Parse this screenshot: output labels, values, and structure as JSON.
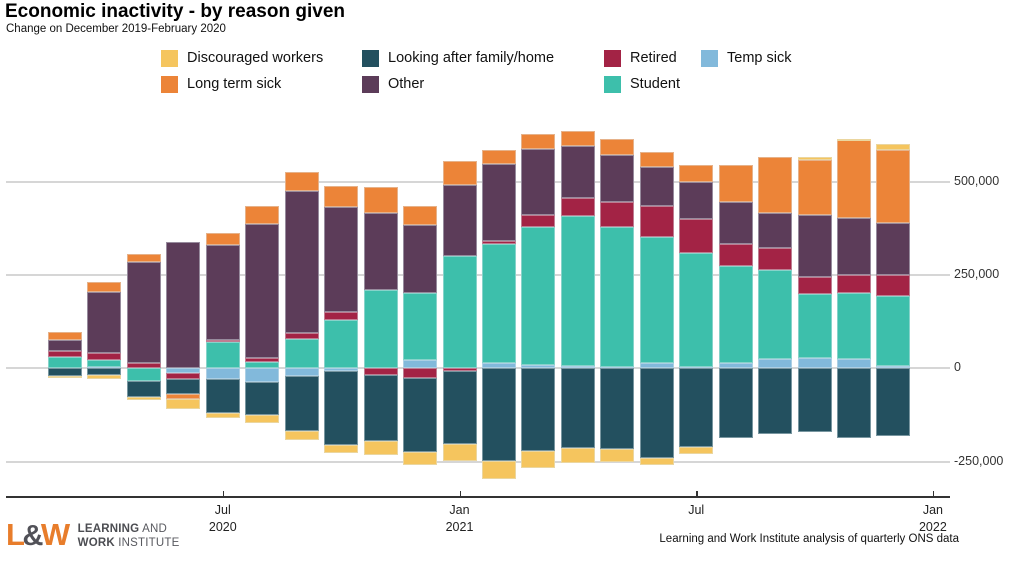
{
  "title": "Economic inactivity - by reason given",
  "subtitle": "Change on December 2019-February 2020",
  "caption": "Learning and Work Institute analysis of quarterly ONS data",
  "logo": {
    "mark_l": "L",
    "mark_amp": "&",
    "mark_w": "W",
    "line1_bold": "LEARNING",
    "line1_rest": " AND",
    "line2_bold": "WORK",
    "line2_rest": " INSTITUTE"
  },
  "y_axis": {
    "labels": [
      "500,000",
      "250,000",
      "0",
      "-250,000"
    ],
    "values": [
      500000,
      250000,
      0,
      -250000
    ]
  },
  "x_axis": {
    "ticks": [
      {
        "line1": "Jul",
        "line2": "2020",
        "slot": 5
      },
      {
        "line1": "Jan",
        "line2": "2021",
        "slot": 11
      },
      {
        "line1": "Jul",
        "line2": "",
        "slot": 17
      },
      {
        "line1": "Jan",
        "line2": "2022",
        "slot": 23
      }
    ]
  },
  "legend": {
    "columns": [
      [
        "discouraged",
        "longterm"
      ],
      [
        "family",
        "other"
      ],
      [
        "retired",
        "student"
      ],
      [
        "tempsick"
      ]
    ]
  },
  "chart_data": {
    "type": "bar",
    "stacked": true,
    "n_bars": 22,
    "x_description": "22 rolling-quarter periods, monthly from Mar 2020 tick-labelled Jul 2020, Jan 2021, Jul, Jan 2022",
    "title": "Economic inactivity - by reason given",
    "subtitle": "Change on December 2019-February 2020",
    "ylabel": "",
    "ylim": [
      -300000,
      650000
    ],
    "grid_values": [
      500000,
      250000,
      0,
      -250000
    ],
    "legend_position": "top",
    "stack_order_from_zero": [
      "tempsick",
      "student",
      "retired",
      "other",
      "family",
      "longterm",
      "discouraged"
    ],
    "series": [
      {
        "id": "discouraged",
        "name": "Discouraged workers",
        "color": "#F5C55E",
        "values": [
          -7000,
          -11000,
          -9000,
          -26000,
          -13000,
          -21000,
          -24000,
          -22000,
          -36000,
          -36000,
          -45000,
          -49000,
          -45000,
          -40000,
          -36000,
          -18000,
          -20000,
          0,
          0,
          9000,
          4000,
          15000
        ]
      },
      {
        "id": "longterm",
        "name": "Long term sick",
        "color": "#EC8438",
        "values": [
          21000,
          27000,
          20000,
          -13000,
          31000,
          49000,
          49000,
          58000,
          72000,
          51000,
          64000,
          38000,
          40000,
          40000,
          43000,
          39000,
          47000,
          98000,
          149000,
          147000,
          208000,
          196000
        ]
      },
      {
        "id": "family",
        "name": "Looking after family/home",
        "color": "#23505F",
        "values": [
          -20000,
          -18000,
          -43000,
          -41000,
          -91000,
          -89000,
          -146000,
          -198000,
          -178000,
          -196000,
          -196000,
          -248000,
          -222000,
          -214000,
          -216000,
          -240000,
          -211000,
          -186000,
          -177000,
          -170000,
          -186000,
          -181000
        ]
      },
      {
        "id": "other",
        "name": "Other",
        "color": "#5C3C59",
        "values": [
          31000,
          162000,
          271000,
          338000,
          255000,
          359000,
          382000,
          280000,
          205000,
          180000,
          192000,
          208000,
          177000,
          140000,
          125000,
          105000,
          98000,
          112000,
          94000,
          166000,
          152000,
          139000
        ]
      },
      {
        "id": "retired",
        "name": "Retired",
        "color": "#A32345",
        "values": [
          16000,
          20000,
          14000,
          -16000,
          6000,
          12000,
          16000,
          22000,
          -18000,
          -27000,
          -7000,
          6000,
          33000,
          47000,
          67000,
          84000,
          92000,
          61000,
          58000,
          46000,
          49000,
          58000
        ]
      },
      {
        "id": "student",
        "name": "Student",
        "color": "#3DBFAB",
        "values": [
          30000,
          18000,
          -33000,
          0,
          70000,
          16000,
          78000,
          129000,
          210000,
          181000,
          300000,
          321000,
          370000,
          402000,
          375000,
          336000,
          305000,
          259000,
          239000,
          172000,
          177000,
          186000
        ]
      },
      {
        "id": "tempsick",
        "name": "Temp sick",
        "color": "#82B9DB",
        "values": [
          0,
          4000,
          0,
          -13000,
          -30000,
          -36000,
          -21000,
          -8000,
          0,
          22000,
          0,
          13000,
          8000,
          6000,
          4000,
          15000,
          3000,
          14000,
          25000,
          27000,
          25000,
          7000
        ]
      }
    ]
  }
}
